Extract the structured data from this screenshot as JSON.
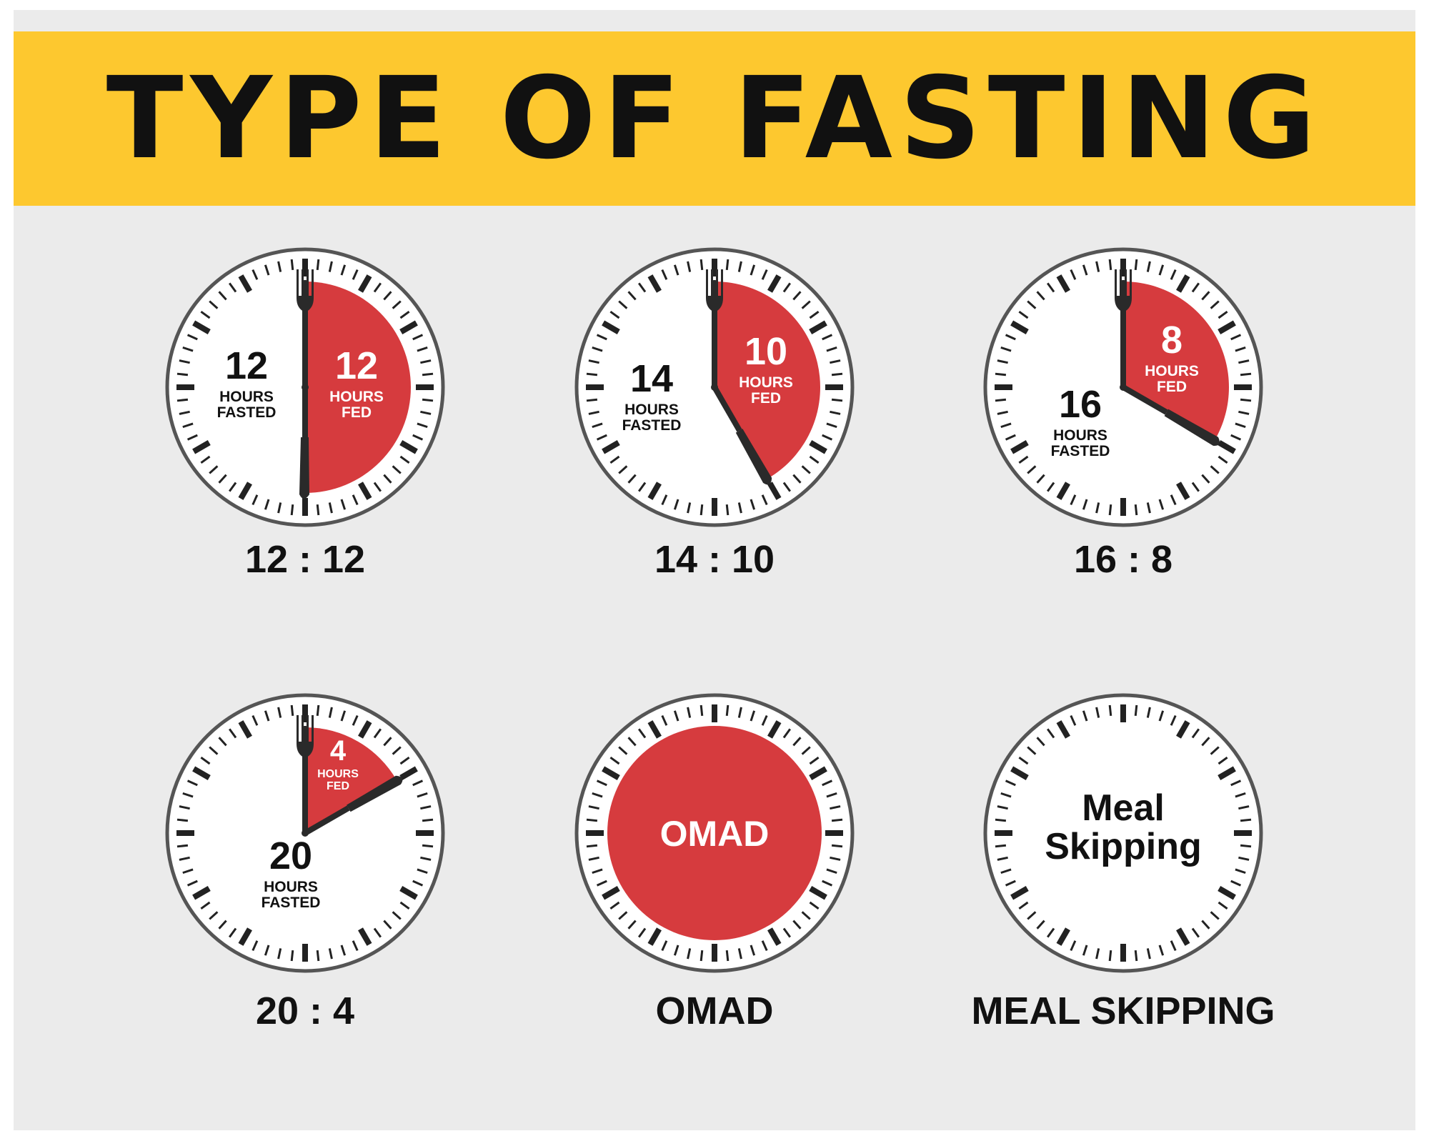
{
  "title": "TYPE OF FASTING",
  "colors": {
    "banner": "#fdc82f",
    "fed": "#d63b3e",
    "panel": "#ebebeb",
    "ink": "#111111",
    "dial_ring": "#555555"
  },
  "schedules": [
    {
      "caption": "12 : 12",
      "fasted_hours": 12,
      "fed_hours": 12,
      "fasted_number": "12",
      "fasted_label_1": "HOURS",
      "fasted_label_2": "FASTED",
      "fed_number": "12",
      "fed_label_1": "HOURS",
      "fed_label_2": "FED"
    },
    {
      "caption": "14 : 10",
      "fasted_hours": 14,
      "fed_hours": 10,
      "fasted_number": "14",
      "fasted_label_1": "HOURS",
      "fasted_label_2": "FASTED",
      "fed_number": "10",
      "fed_label_1": "HOURS",
      "fed_label_2": "FED"
    },
    {
      "caption": "16 : 8",
      "fasted_hours": 16,
      "fed_hours": 8,
      "fasted_number": "16",
      "fasted_label_1": "HOURS",
      "fasted_label_2": "FASTED",
      "fed_number": "8",
      "fed_label_1": "HOURS",
      "fed_label_2": "FED"
    },
    {
      "caption": "20 : 4",
      "fasted_hours": 20,
      "fed_hours": 4,
      "fasted_number": "20",
      "fasted_label_1": "HOURS",
      "fasted_label_2": "FASTED",
      "fed_number": "4",
      "fed_label_1": "HOURS",
      "fed_label_2": "FED"
    },
    {
      "caption": "OMAD",
      "center_text": "OMAD"
    },
    {
      "caption": "MEAL SKIPPING",
      "center_line_1": "Meal",
      "center_line_2": "Skipping"
    }
  ],
  "icons": [
    "fork-icon",
    "knife-icon"
  ]
}
